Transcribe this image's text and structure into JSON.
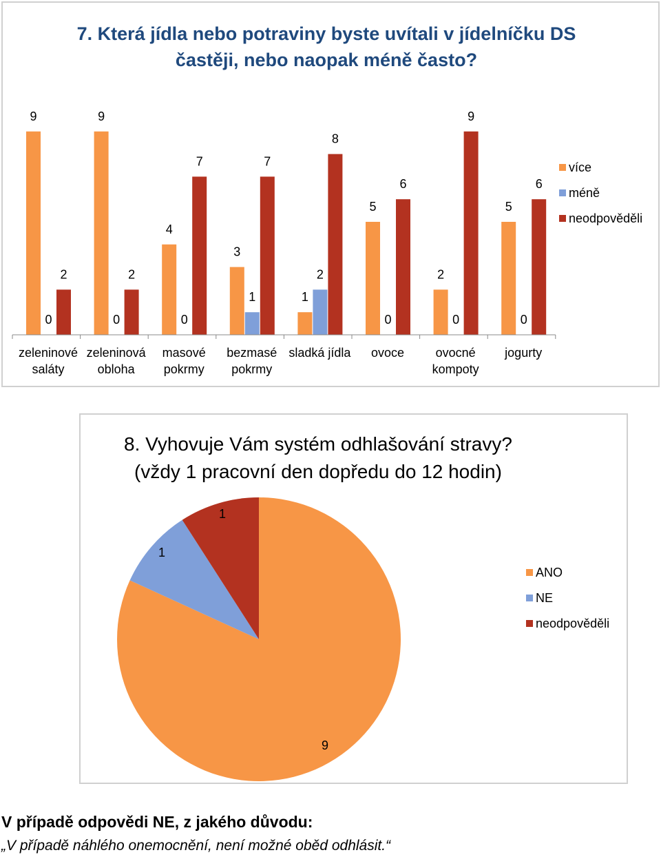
{
  "chart_data": [
    {
      "type": "bar",
      "title": "7. Která jídla nebo potraviny byste uvítali v jídelníčku DS častěji, nebo naopak méně často?",
      "title_lines": [
        "7. Která jídla nebo potraviny byste uvítali v jídelníčku DS",
        "častěji, nebo naopak méně často?"
      ],
      "categories": [
        [
          "zeleninové",
          "saláty"
        ],
        [
          "zeleninová",
          "obloha"
        ],
        [
          "masové",
          "pokrmy"
        ],
        [
          "bezmasé",
          "pokrmy"
        ],
        [
          "sladká jídla"
        ],
        [
          "ovoce"
        ],
        [
          "ovocné",
          "kompoty"
        ],
        [
          "jogurty"
        ]
      ],
      "series": [
        {
          "name": "více",
          "color": "#f79646",
          "values": [
            9,
            9,
            4,
            3,
            1,
            5,
            2,
            5
          ]
        },
        {
          "name": "méně",
          "color": "#7f9fd9",
          "values": [
            0,
            0,
            0,
            1,
            2,
            0,
            0,
            0
          ]
        },
        {
          "name": "neodpověděli",
          "color": "#b33220",
          "values": [
            2,
            2,
            7,
            7,
            8,
            6,
            9,
            6
          ]
        }
      ],
      "ylim": [
        0,
        9
      ],
      "legend": "right"
    },
    {
      "type": "pie",
      "title": "8. Vyhovuje Vám systém odhlašování stravy? (vždy 1 pracovní den dopředu do 12 hodin)",
      "title_lines": [
        "8. Vyhovuje Vám systém odhlašování stravy?",
        "(vždy 1 pracovní den dopředu do 12 hodin)"
      ],
      "slices": [
        {
          "name": "ANO",
          "value": 9,
          "color": "#f79646"
        },
        {
          "name": "NE",
          "value": 1,
          "color": "#7f9fd9"
        },
        {
          "name": "neodpověděli",
          "value": 1,
          "color": "#b33220"
        }
      ],
      "legend": "right"
    }
  ],
  "footer": {
    "question": "V případě odpovědi NE, z jakého důvodu:",
    "answer": "„V případě náhlého onemocnění, není možné oběd odhlásit.“"
  }
}
